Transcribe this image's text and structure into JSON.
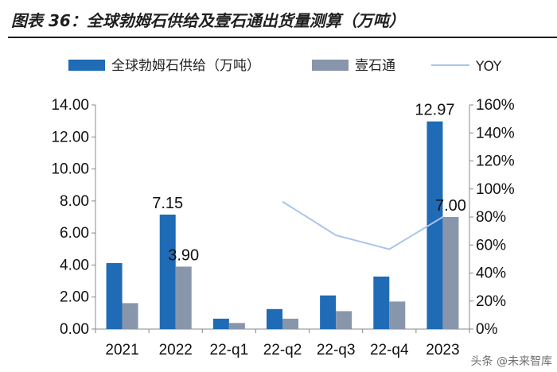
{
  "title": "图表 36：全球勃姆石供给及壹石通出货量测算（万吨）",
  "watermark": "头条 @未来智库",
  "colors": {
    "series1": "#1f6bb5",
    "series2": "#8896ab",
    "line": "#a9c4ec",
    "axis": "#888888",
    "text": "#111111"
  },
  "chart_data": {
    "type": "bar",
    "title": "全球勃姆石供给及壹石通出货量测算（万吨）",
    "categories": [
      "2021",
      "2022",
      "22-q1",
      "22-q2",
      "22-q3",
      "22-q4",
      "2023"
    ],
    "series": [
      {
        "name": "全球勃姆石供给（万吨）",
        "values": [
          4.12,
          7.15,
          0.65,
          1.25,
          2.1,
          3.28,
          12.97
        ],
        "axis": "left"
      },
      {
        "name": "壹石通",
        "values": [
          1.62,
          3.9,
          0.38,
          0.65,
          1.12,
          1.72,
          7.0
        ],
        "axis": "left"
      },
      {
        "name": "YOY",
        "type": "line",
        "axis": "right",
        "values": [
          null,
          null,
          null,
          0.91,
          0.67,
          0.57,
          0.8
        ]
      }
    ],
    "data_labels": [
      {
        "series": 0,
        "index": 1,
        "text": "7.15"
      },
      {
        "series": 1,
        "index": 1,
        "text": "3.90"
      },
      {
        "series": 0,
        "index": 6,
        "text": "12.97"
      },
      {
        "series": 1,
        "index": 6,
        "text": "7.00"
      }
    ],
    "y_left": {
      "min": 0,
      "max": 14,
      "step": 2,
      "ticks": [
        "0.00",
        "2.00",
        "4.00",
        "6.00",
        "8.00",
        "10.00",
        "12.00",
        "14.00"
      ]
    },
    "y_right": {
      "min": 0,
      "max": 1.6,
      "step": 0.2,
      "ticks": [
        "0%",
        "20%",
        "40%",
        "60%",
        "80%",
        "100%",
        "120%",
        "140%",
        "160%"
      ]
    },
    "legend": [
      "全球勃姆石供给（万吨）",
      "壹石通",
      "YOY"
    ],
    "legend_position": "top"
  }
}
